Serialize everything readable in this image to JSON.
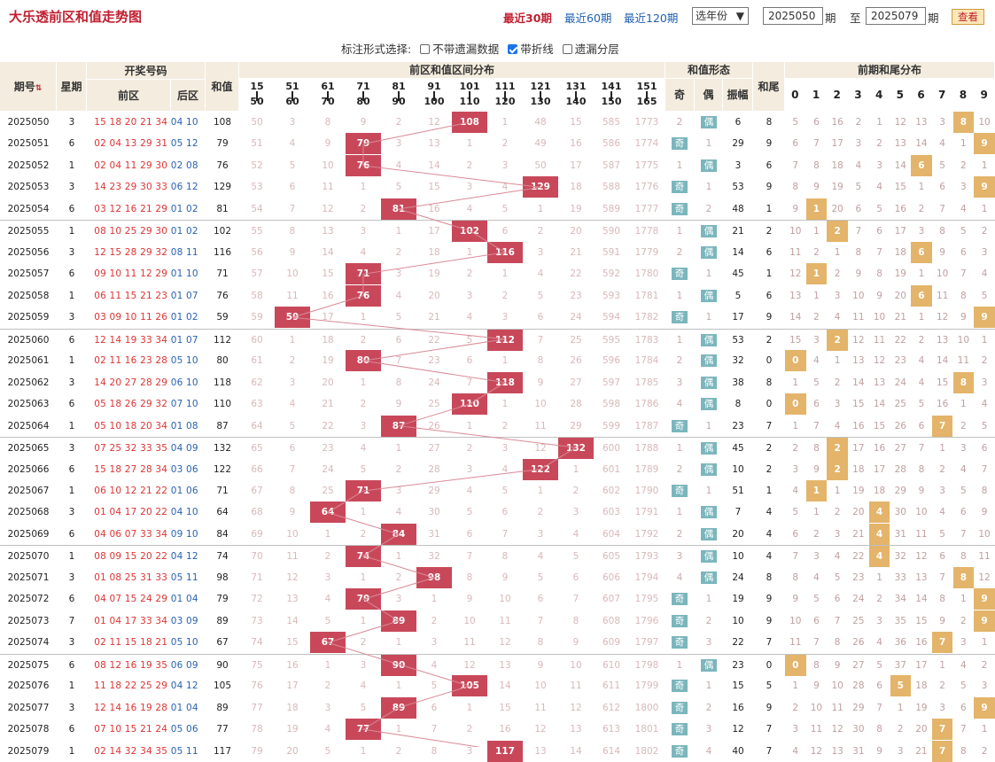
{
  "title": "大乐透前区和值走势图",
  "filters": {
    "f30": "最近30期",
    "f60": "最近60期",
    "f120": "最近120期",
    "year_select": "选年份",
    "from_label": "期",
    "to_label": "至",
    "from_value": "2025050",
    "to_value": "2025079",
    "to_suffix": "期",
    "query_button": "查看"
  },
  "options": {
    "label": "标注形式选择:",
    "opt1": "不带遗漏数据",
    "opt2": "带折线",
    "opt3": "遗漏分层",
    "opt2_checked": true
  },
  "headers": {
    "period": "期号",
    "week": "星期",
    "draw": "开奖号码",
    "front": "前区",
    "back": "后区",
    "sum": "和值",
    "dist": "前区和值区间分布",
    "shape": "和值形态",
    "odd": "奇",
    "even": "偶",
    "amp": "振幅",
    "tail": "和尾",
    "prevtail": "前期和尾分布"
  },
  "ranges": [
    [
      "15",
      "50"
    ],
    [
      "51",
      "60"
    ],
    [
      "61",
      "70"
    ],
    [
      "71",
      "80"
    ],
    [
      "81",
      "90"
    ],
    [
      "91",
      "100"
    ],
    [
      "101",
      "110"
    ],
    [
      "111",
      "120"
    ],
    [
      "121",
      "130"
    ],
    [
      "131",
      "140"
    ],
    [
      "141",
      "150"
    ],
    [
      "151",
      "165"
    ]
  ],
  "tail_digits": [
    "0",
    "1",
    "2",
    "3",
    "4",
    "5",
    "6",
    "7",
    "8",
    "9"
  ],
  "rows": [
    {
      "p": "2025050",
      "w": "3",
      "f": "15 18 20 21 34",
      "b": "04 10",
      "s": "108",
      "dist": [
        "50",
        "3",
        "8",
        "9",
        "2",
        "12",
        "108",
        "1",
        "48",
        "15",
        "585",
        "1773"
      ],
      "hit": 6,
      "odd": "2",
      "even": "偶",
      "oe": "e",
      "amp": "6",
      "tail": "8",
      "tails": [
        "5",
        "6",
        "16",
        "2",
        "1",
        "12",
        "13",
        "3",
        "8",
        "10"
      ],
      "th": 8
    },
    {
      "p": "2025051",
      "w": "6",
      "f": "02 04 13 29 31",
      "b": "05 12",
      "s": "79",
      "dist": [
        "51",
        "4",
        "9",
        "79",
        "3",
        "13",
        "1",
        "2",
        "49",
        "16",
        "586",
        "1774"
      ],
      "hit": 3,
      "odd": "奇",
      "even": "1",
      "oe": "o",
      "amp": "29",
      "tail": "9",
      "tails": [
        "6",
        "7",
        "17",
        "3",
        "2",
        "13",
        "14",
        "4",
        "1",
        "9"
      ],
      "th": 9
    },
    {
      "p": "2025052",
      "w": "1",
      "f": "02 04 11 29 30",
      "b": "02 08",
      "s": "76",
      "dist": [
        "52",
        "5",
        "10",
        "76",
        "4",
        "14",
        "2",
        "3",
        "50",
        "17",
        "587",
        "1775"
      ],
      "hit": 3,
      "odd": "1",
      "even": "偶",
      "oe": "e",
      "amp": "3",
      "tail": "6",
      "tails": [
        "7",
        "8",
        "18",
        "4",
        "3",
        "14",
        "6",
        "5",
        "2",
        "1"
      ],
      "th": 6
    },
    {
      "p": "2025053",
      "w": "3",
      "f": "14 23 29 30 33",
      "b": "06 12",
      "s": "129",
      "dist": [
        "53",
        "6",
        "11",
        "1",
        "5",
        "15",
        "3",
        "4",
        "129",
        "18",
        "588",
        "1776"
      ],
      "hit": 8,
      "odd": "奇",
      "even": "1",
      "oe": "o",
      "amp": "53",
      "tail": "9",
      "tails": [
        "8",
        "9",
        "19",
        "5",
        "4",
        "15",
        "1",
        "6",
        "3",
        "9"
      ],
      "th": 9
    },
    {
      "p": "2025054",
      "w": "6",
      "f": "03 12 16 21 29",
      "b": "01 02",
      "s": "81",
      "dist": [
        "54",
        "7",
        "12",
        "2",
        "81",
        "16",
        "4",
        "5",
        "1",
        "19",
        "589",
        "1777"
      ],
      "hit": 4,
      "odd": "奇",
      "even": "2",
      "oe": "o",
      "amp": "48",
      "tail": "1",
      "tails": [
        "9",
        "1",
        "20",
        "6",
        "5",
        "16",
        "2",
        "7",
        "4",
        "1"
      ],
      "th": 1
    },
    {
      "p": "2025055",
      "w": "1",
      "f": "08 10 25 29 30",
      "b": "01 02",
      "s": "102",
      "dist": [
        "55",
        "8",
        "13",
        "3",
        "1",
        "17",
        "102",
        "6",
        "2",
        "20",
        "590",
        "1778"
      ],
      "hit": 6,
      "odd": "1",
      "even": "偶",
      "oe": "e",
      "amp": "21",
      "tail": "2",
      "tails": [
        "10",
        "1",
        "2",
        "7",
        "6",
        "17",
        "3",
        "8",
        "5",
        "2"
      ],
      "th": 2
    },
    {
      "p": "2025056",
      "w": "3",
      "f": "12 15 28 29 32",
      "b": "08 11",
      "s": "116",
      "dist": [
        "56",
        "9",
        "14",
        "4",
        "2",
        "18",
        "1",
        "116",
        "3",
        "21",
        "591",
        "1779"
      ],
      "hit": 7,
      "odd": "2",
      "even": "偶",
      "oe": "e",
      "amp": "14",
      "tail": "6",
      "tails": [
        "11",
        "2",
        "1",
        "8",
        "7",
        "18",
        "6",
        "9",
        "6",
        "3"
      ],
      "th": 6
    },
    {
      "p": "2025057",
      "w": "6",
      "f": "09 10 11 12 29",
      "b": "01 10",
      "s": "71",
      "dist": [
        "57",
        "10",
        "15",
        "71",
        "3",
        "19",
        "2",
        "1",
        "4",
        "22",
        "592",
        "1780"
      ],
      "hit": 3,
      "odd": "奇",
      "even": "1",
      "oe": "o",
      "amp": "45",
      "tail": "1",
      "tails": [
        "12",
        "1",
        "2",
        "9",
        "8",
        "19",
        "1",
        "10",
        "7",
        "4"
      ],
      "th": 1
    },
    {
      "p": "2025058",
      "w": "1",
      "f": "06 11 15 21 23",
      "b": "01 07",
      "s": "76",
      "dist": [
        "58",
        "11",
        "16",
        "76",
        "4",
        "20",
        "3",
        "2",
        "5",
        "23",
        "593",
        "1781"
      ],
      "hit": 3,
      "odd": "1",
      "even": "偶",
      "oe": "e",
      "amp": "5",
      "tail": "6",
      "tails": [
        "13",
        "1",
        "3",
        "10",
        "9",
        "20",
        "6",
        "11",
        "8",
        "5"
      ],
      "th": 6
    },
    {
      "p": "2025059",
      "w": "3",
      "f": "03 09 10 11 26",
      "b": "01 02",
      "s": "59",
      "dist": [
        "59",
        "59",
        "17",
        "1",
        "5",
        "21",
        "4",
        "3",
        "6",
        "24",
        "594",
        "1782"
      ],
      "hit": 1,
      "odd": "奇",
      "even": "1",
      "oe": "o",
      "amp": "17",
      "tail": "9",
      "tails": [
        "14",
        "2",
        "4",
        "11",
        "10",
        "21",
        "1",
        "12",
        "9",
        "9"
      ],
      "th": 9
    },
    {
      "p": "2025060",
      "w": "6",
      "f": "12 14 19 33 34",
      "b": "01 07",
      "s": "112",
      "dist": [
        "60",
        "1",
        "18",
        "2",
        "6",
        "22",
        "5",
        "112",
        "7",
        "25",
        "595",
        "1783"
      ],
      "hit": 7,
      "odd": "1",
      "even": "偶",
      "oe": "e",
      "amp": "53",
      "tail": "2",
      "tails": [
        "15",
        "3",
        "2",
        "12",
        "11",
        "22",
        "2",
        "13",
        "10",
        "1"
      ],
      "th": 2
    },
    {
      "p": "2025061",
      "w": "1",
      "f": "02 11 16 23 28",
      "b": "05 10",
      "s": "80",
      "dist": [
        "61",
        "2",
        "19",
        "80",
        "7",
        "23",
        "6",
        "1",
        "8",
        "26",
        "596",
        "1784"
      ],
      "hit": 3,
      "odd": "2",
      "even": "偶",
      "oe": "e",
      "amp": "32",
      "tail": "0",
      "tails": [
        "0",
        "4",
        "1",
        "13",
        "12",
        "23",
        "4",
        "14",
        "11",
        "2"
      ],
      "th": 0
    },
    {
      "p": "2025062",
      "w": "3",
      "f": "14 20 27 28 29",
      "b": "06 10",
      "s": "118",
      "dist": [
        "62",
        "3",
        "20",
        "1",
        "8",
        "24",
        "7",
        "118",
        "9",
        "27",
        "597",
        "1785"
      ],
      "hit": 7,
      "odd": "3",
      "even": "偶",
      "oe": "e",
      "amp": "38",
      "tail": "8",
      "tails": [
        "1",
        "5",
        "2",
        "14",
        "13",
        "24",
        "4",
        "15",
        "8",
        "3"
      ],
      "th": 8
    },
    {
      "p": "2025063",
      "w": "6",
      "f": "05 18 26 29 32",
      "b": "07 10",
      "s": "110",
      "dist": [
        "63",
        "4",
        "21",
        "2",
        "9",
        "25",
        "110",
        "1",
        "10",
        "28",
        "598",
        "1786"
      ],
      "hit": 6,
      "odd": "4",
      "even": "偶",
      "oe": "e",
      "amp": "8",
      "tail": "0",
      "tails": [
        "0",
        "6",
        "3",
        "15",
        "14",
        "25",
        "5",
        "16",
        "1",
        "4"
      ],
      "th": 0
    },
    {
      "p": "2025064",
      "w": "1",
      "f": "05 10 18 20 34",
      "b": "01 08",
      "s": "87",
      "dist": [
        "64",
        "5",
        "22",
        "3",
        "87",
        "26",
        "1",
        "2",
        "11",
        "29",
        "599",
        "1787"
      ],
      "hit": 4,
      "odd": "奇",
      "even": "1",
      "oe": "o",
      "amp": "23",
      "tail": "7",
      "tails": [
        "1",
        "7",
        "4",
        "16",
        "15",
        "26",
        "6",
        "7",
        "2",
        "5"
      ],
      "th": 7
    },
    {
      "p": "2025065",
      "w": "3",
      "f": "07 25 32 33 35",
      "b": "04 09",
      "s": "132",
      "dist": [
        "65",
        "6",
        "23",
        "4",
        "1",
        "27",
        "2",
        "3",
        "12",
        "132",
        "600",
        "1788"
      ],
      "hit": 9,
      "odd": "1",
      "even": "偶",
      "oe": "e",
      "amp": "45",
      "tail": "2",
      "tails": [
        "2",
        "8",
        "2",
        "17",
        "16",
        "27",
        "7",
        "1",
        "3",
        "6"
      ],
      "th": 2
    },
    {
      "p": "2025066",
      "w": "6",
      "f": "15 18 27 28 34",
      "b": "03 06",
      "s": "122",
      "dist": [
        "66",
        "7",
        "24",
        "5",
        "2",
        "28",
        "3",
        "4",
        "122",
        "1",
        "601",
        "1789"
      ],
      "hit": 8,
      "odd": "2",
      "even": "偶",
      "oe": "e",
      "amp": "10",
      "tail": "2",
      "tails": [
        "3",
        "9",
        "2",
        "18",
        "17",
        "28",
        "8",
        "2",
        "4",
        "7"
      ],
      "th": 2
    },
    {
      "p": "2025067",
      "w": "1",
      "f": "06 10 12 21 22",
      "b": "01 06",
      "s": "71",
      "dist": [
        "67",
        "8",
        "25",
        "71",
        "3",
        "29",
        "4",
        "5",
        "1",
        "2",
        "602",
        "1790"
      ],
      "hit": 3,
      "odd": "奇",
      "even": "1",
      "oe": "o",
      "amp": "51",
      "tail": "1",
      "tails": [
        "4",
        "1",
        "1",
        "19",
        "18",
        "29",
        "9",
        "3",
        "5",
        "8"
      ],
      "th": 1
    },
    {
      "p": "2025068",
      "w": "3",
      "f": "01 04 17 20 22",
      "b": "04 10",
      "s": "64",
      "dist": [
        "68",
        "9",
        "64",
        "1",
        "4",
        "30",
        "5",
        "6",
        "2",
        "3",
        "603",
        "1791"
      ],
      "hit": 2,
      "odd": "1",
      "even": "偶",
      "oe": "e",
      "amp": "7",
      "tail": "4",
      "tails": [
        "5",
        "1",
        "2",
        "20",
        "4",
        "30",
        "10",
        "4",
        "6",
        "9"
      ],
      "th": 4
    },
    {
      "p": "2025069",
      "w": "6",
      "f": "04 06 07 33 34",
      "b": "09 10",
      "s": "84",
      "dist": [
        "69",
        "10",
        "1",
        "2",
        "84",
        "31",
        "6",
        "7",
        "3",
        "4",
        "604",
        "1792"
      ],
      "hit": 4,
      "odd": "2",
      "even": "偶",
      "oe": "e",
      "amp": "20",
      "tail": "4",
      "tails": [
        "6",
        "2",
        "3",
        "21",
        "4",
        "31",
        "11",
        "5",
        "7",
        "10"
      ],
      "th": 4
    },
    {
      "p": "2025070",
      "w": "1",
      "f": "08 09 15 20 22",
      "b": "04 12",
      "s": "74",
      "dist": [
        "70",
        "11",
        "2",
        "74",
        "1",
        "32",
        "7",
        "8",
        "4",
        "5",
        "605",
        "1793"
      ],
      "hit": 3,
      "odd": "3",
      "even": "偶",
      "oe": "e",
      "amp": "10",
      "tail": "4",
      "tails": [
        "7",
        "3",
        "4",
        "22",
        "4",
        "32",
        "12",
        "6",
        "8",
        "11"
      ],
      "th": 4
    },
    {
      "p": "2025071",
      "w": "3",
      "f": "01 08 25 31 33",
      "b": "05 11",
      "s": "98",
      "dist": [
        "71",
        "12",
        "3",
        "1",
        "2",
        "98",
        "8",
        "9",
        "5",
        "6",
        "606",
        "1794"
      ],
      "hit": 5,
      "odd": "4",
      "even": "偶",
      "oe": "e",
      "amp": "24",
      "tail": "8",
      "tails": [
        "8",
        "4",
        "5",
        "23",
        "1",
        "33",
        "13",
        "7",
        "8",
        "12"
      ],
      "th": 8
    },
    {
      "p": "2025072",
      "w": "6",
      "f": "04 07 15 24 29",
      "b": "01 04",
      "s": "79",
      "dist": [
        "72",
        "13",
        "4",
        "79",
        "3",
        "1",
        "9",
        "10",
        "6",
        "7",
        "607",
        "1795"
      ],
      "hit": 3,
      "odd": "奇",
      "even": "1",
      "oe": "o",
      "amp": "19",
      "tail": "9",
      "tails": [
        "9",
        "5",
        "6",
        "24",
        "2",
        "34",
        "14",
        "8",
        "1",
        "9"
      ],
      "th": 9
    },
    {
      "p": "2025073",
      "w": "7",
      "f": "01 04 17 33 34",
      "b": "03 09",
      "s": "89",
      "dist": [
        "73",
        "14",
        "5",
        "1",
        "89",
        "2",
        "10",
        "11",
        "7",
        "8",
        "608",
        "1796"
      ],
      "hit": 4,
      "odd": "奇",
      "even": "2",
      "oe": "o",
      "amp": "10",
      "tail": "9",
      "tails": [
        "10",
        "6",
        "7",
        "25",
        "3",
        "35",
        "15",
        "9",
        "2",
        "9"
      ],
      "th": 9
    },
    {
      "p": "2025074",
      "w": "3",
      "f": "02 11 15 18 21",
      "b": "05 10",
      "s": "67",
      "dist": [
        "74",
        "15",
        "67",
        "2",
        "1",
        "3",
        "11",
        "12",
        "8",
        "9",
        "609",
        "1797"
      ],
      "hit": 2,
      "odd": "奇",
      "even": "3",
      "oe": "o",
      "amp": "22",
      "tail": "7",
      "tails": [
        "11",
        "7",
        "8",
        "26",
        "4",
        "36",
        "16",
        "7",
        "3",
        "1"
      ],
      "th": 7
    },
    {
      "p": "2025075",
      "w": "6",
      "f": "08 12 16 19 35",
      "b": "06 09",
      "s": "90",
      "dist": [
        "75",
        "16",
        "1",
        "3",
        "90",
        "4",
        "12",
        "13",
        "9",
        "10",
        "610",
        "1798"
      ],
      "hit": 4,
      "odd": "1",
      "even": "偶",
      "oe": "e",
      "amp": "23",
      "tail": "0",
      "tails": [
        "0",
        "8",
        "9",
        "27",
        "5",
        "37",
        "17",
        "1",
        "4",
        "2"
      ],
      "th": 0
    },
    {
      "p": "2025076",
      "w": "1",
      "f": "11 18 22 25 29",
      "b": "04 12",
      "s": "105",
      "dist": [
        "76",
        "17",
        "2",
        "4",
        "1",
        "5",
        "105",
        "14",
        "10",
        "11",
        "611",
        "1799"
      ],
      "hit": 6,
      "odd": "奇",
      "even": "1",
      "oe": "o",
      "amp": "15",
      "tail": "5",
      "tails": [
        "1",
        "9",
        "10",
        "28",
        "6",
        "5",
        "18",
        "2",
        "5",
        "3"
      ],
      "th": 5
    },
    {
      "p": "2025077",
      "w": "3",
      "f": "12 14 16 19 28",
      "b": "01 04",
      "s": "89",
      "dist": [
        "77",
        "18",
        "3",
        "5",
        "89",
        "6",
        "1",
        "15",
        "11",
        "12",
        "612",
        "1800"
      ],
      "hit": 4,
      "odd": "奇",
      "even": "2",
      "oe": "o",
      "amp": "16",
      "tail": "9",
      "tails": [
        "2",
        "10",
        "11",
        "29",
        "7",
        "1",
        "19",
        "3",
        "6",
        "9"
      ],
      "th": 9
    },
    {
      "p": "2025078",
      "w": "6",
      "f": "07 10 15 21 24",
      "b": "05 06",
      "s": "77",
      "dist": [
        "78",
        "19",
        "4",
        "77",
        "1",
        "7",
        "2",
        "16",
        "12",
        "13",
        "613",
        "1801"
      ],
      "hit": 3,
      "odd": "奇",
      "even": "3",
      "oe": "o",
      "amp": "12",
      "tail": "7",
      "tails": [
        "3",
        "11",
        "12",
        "30",
        "8",
        "2",
        "20",
        "7",
        "7",
        "1"
      ],
      "th": 7
    },
    {
      "p": "2025079",
      "w": "1",
      "f": "02 14 32 34 35",
      "b": "05 11",
      "s": "117",
      "dist": [
        "79",
        "20",
        "5",
        "1",
        "2",
        "8",
        "3",
        "117",
        "13",
        "14",
        "614",
        "1802"
      ],
      "hit": 7,
      "odd": "奇",
      "even": "4",
      "oe": "o",
      "amp": "40",
      "tail": "7",
      "tails": [
        "4",
        "12",
        "13",
        "31",
        "9",
        "3",
        "21",
        "7",
        "8",
        "2"
      ],
      "th": 7
    }
  ]
}
